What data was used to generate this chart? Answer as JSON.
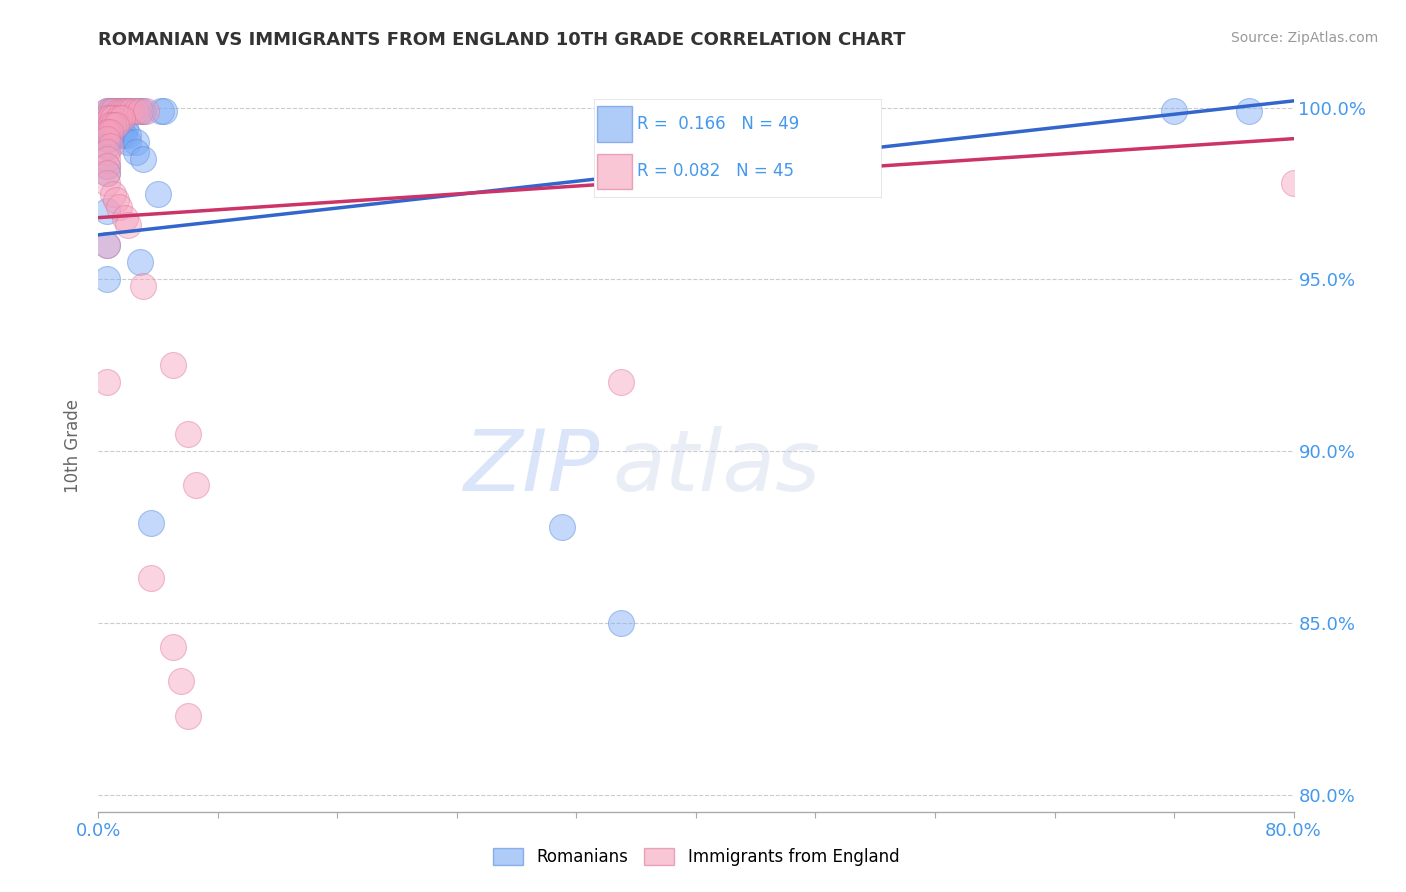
{
  "title": "ROMANIAN VS IMMIGRANTS FROM ENGLAND 10TH GRADE CORRELATION CHART",
  "source": "Source: ZipAtlas.com",
  "ylabel": "10th Grade",
  "xmin": 0.0,
  "xmax": 0.8,
  "ymin": 0.795,
  "ymax": 1.008,
  "yticks": [
    0.8,
    0.85,
    0.9,
    0.95,
    1.0
  ],
  "ytick_labels": [
    "80.0%",
    "85.0%",
    "90.0%",
    "95.0%",
    "100.0%"
  ],
  "xticks": [
    0.0,
    0.08,
    0.16,
    0.24,
    0.32,
    0.4,
    0.48,
    0.56,
    0.64,
    0.72,
    0.8
  ],
  "xtick_labels": [
    "0.0%",
    "",
    "",
    "",
    "",
    "",
    "",
    "",
    "",
    "",
    "80.0%"
  ],
  "legend_r_blue": "R =  0.166",
  "legend_n_blue": "N = 49",
  "legend_r_pink": "R = 0.082",
  "legend_n_pink": "N = 45",
  "watermark_zip": "ZIP",
  "watermark_atlas": "atlas",
  "blue_scatter": [
    [
      0.006,
      0.999
    ],
    [
      0.008,
      0.999
    ],
    [
      0.01,
      0.999
    ],
    [
      0.012,
      0.999
    ],
    [
      0.014,
      0.999
    ],
    [
      0.016,
      0.999
    ],
    [
      0.018,
      0.999
    ],
    [
      0.02,
      0.999
    ],
    [
      0.022,
      0.999
    ],
    [
      0.025,
      0.999
    ],
    [
      0.028,
      0.999
    ],
    [
      0.03,
      0.999
    ],
    [
      0.042,
      0.999
    ],
    [
      0.044,
      0.999
    ],
    [
      0.006,
      0.997
    ],
    [
      0.008,
      0.997
    ],
    [
      0.01,
      0.997
    ],
    [
      0.012,
      0.997
    ],
    [
      0.014,
      0.997
    ],
    [
      0.01,
      0.995
    ],
    [
      0.012,
      0.995
    ],
    [
      0.015,
      0.994
    ],
    [
      0.018,
      0.994
    ],
    [
      0.006,
      0.993
    ],
    [
      0.008,
      0.993
    ],
    [
      0.01,
      0.993
    ],
    [
      0.012,
      0.993
    ],
    [
      0.015,
      0.992
    ],
    [
      0.017,
      0.992
    ],
    [
      0.02,
      0.992
    ],
    [
      0.006,
      0.991
    ],
    [
      0.008,
      0.991
    ],
    [
      0.02,
      0.99
    ],
    [
      0.025,
      0.99
    ],
    [
      0.006,
      0.989
    ],
    [
      0.025,
      0.987
    ],
    [
      0.03,
      0.985
    ],
    [
      0.006,
      0.983
    ],
    [
      0.006,
      0.981
    ],
    [
      0.04,
      0.975
    ],
    [
      0.006,
      0.97
    ],
    [
      0.006,
      0.96
    ],
    [
      0.028,
      0.955
    ],
    [
      0.006,
      0.95
    ],
    [
      0.035,
      0.879
    ],
    [
      0.31,
      0.878
    ],
    [
      0.35,
      0.85
    ],
    [
      0.72,
      0.999
    ],
    [
      0.77,
      0.999
    ]
  ],
  "pink_scatter": [
    [
      0.006,
      0.999
    ],
    [
      0.008,
      0.999
    ],
    [
      0.01,
      0.999
    ],
    [
      0.014,
      0.999
    ],
    [
      0.016,
      0.999
    ],
    [
      0.018,
      0.999
    ],
    [
      0.02,
      0.999
    ],
    [
      0.022,
      0.999
    ],
    [
      0.025,
      0.999
    ],
    [
      0.028,
      0.999
    ],
    [
      0.032,
      0.999
    ],
    [
      0.006,
      0.997
    ],
    [
      0.008,
      0.997
    ],
    [
      0.01,
      0.997
    ],
    [
      0.014,
      0.997
    ],
    [
      0.016,
      0.997
    ],
    [
      0.008,
      0.995
    ],
    [
      0.01,
      0.995
    ],
    [
      0.012,
      0.995
    ],
    [
      0.006,
      0.993
    ],
    [
      0.008,
      0.993
    ],
    [
      0.006,
      0.991
    ],
    [
      0.008,
      0.989
    ],
    [
      0.006,
      0.987
    ],
    [
      0.006,
      0.985
    ],
    [
      0.006,
      0.983
    ],
    [
      0.006,
      0.981
    ],
    [
      0.006,
      0.978
    ],
    [
      0.01,
      0.975
    ],
    [
      0.012,
      0.973
    ],
    [
      0.014,
      0.971
    ],
    [
      0.018,
      0.968
    ],
    [
      0.02,
      0.966
    ],
    [
      0.006,
      0.96
    ],
    [
      0.03,
      0.948
    ],
    [
      0.05,
      0.925
    ],
    [
      0.006,
      0.92
    ],
    [
      0.06,
      0.905
    ],
    [
      0.065,
      0.89
    ],
    [
      0.035,
      0.863
    ],
    [
      0.05,
      0.843
    ],
    [
      0.055,
      0.833
    ],
    [
      0.06,
      0.823
    ],
    [
      0.35,
      0.92
    ],
    [
      0.8,
      0.978
    ]
  ],
  "blue_line_x": [
    0.0,
    0.8
  ],
  "blue_line_y": [
    0.963,
    1.002
  ],
  "pink_line_x": [
    0.0,
    0.8
  ],
  "pink_line_y": [
    0.968,
    0.991
  ],
  "blue_color": "#7aaaf5",
  "pink_color": "#f5a0bc",
  "blue_edge_color": "#5588dd",
  "pink_edge_color": "#dd7799",
  "blue_line_color": "#3366cc",
  "pink_line_color": "#cc3366",
  "title_color": "#333333",
  "axis_label_color": "#4499ee",
  "background_color": "#ffffff",
  "grid_color": "#cccccc"
}
